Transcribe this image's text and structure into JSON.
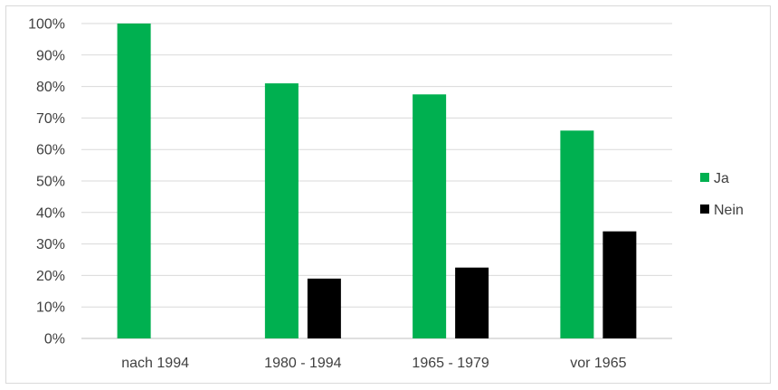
{
  "chart_data": {
    "type": "bar",
    "title": "",
    "xlabel": "",
    "ylabel": "",
    "categories": [
      "nach 1994",
      "1980 - 1994",
      "1965 - 1979",
      "vor 1965"
    ],
    "series": [
      {
        "name": "Ja",
        "color": "#00b050",
        "values": [
          100,
          81,
          77.5,
          66
        ]
      },
      {
        "name": "Nein",
        "color": "#000000",
        "values": [
          0,
          19,
          22.5,
          34
        ]
      }
    ],
    "ylim": [
      0,
      100
    ],
    "yticks": [
      "0%",
      "10%",
      "20%",
      "30%",
      "40%",
      "50%",
      "60%",
      "70%",
      "80%",
      "90%",
      "100%"
    ],
    "grid": true,
    "legend_position": "right"
  }
}
